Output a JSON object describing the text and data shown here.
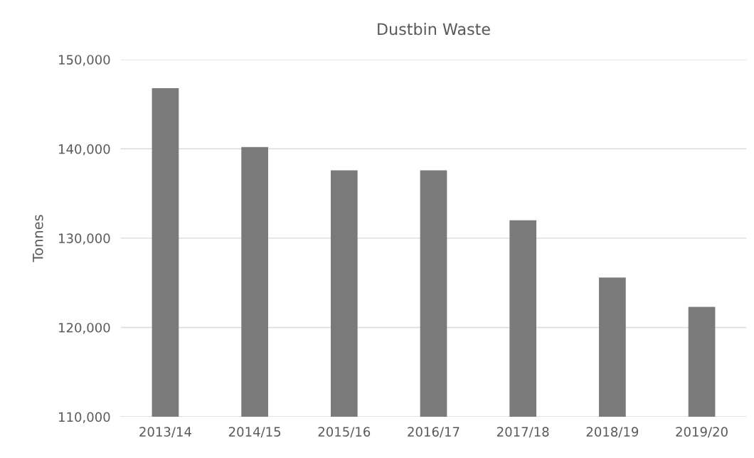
{
  "chart_data": {
    "type": "bar",
    "title": "Dustbin Waste",
    "ylabel": "Tonnes",
    "categories": [
      "2013/14",
      "2014/15",
      "2015/16",
      "2016/17",
      "2017/18",
      "2018/19",
      "2019/20"
    ],
    "values": [
      146800,
      140200,
      137600,
      137600,
      132000,
      125600,
      122300
    ],
    "color": "#7a7a7a",
    "ylim": [
      110000,
      150000
    ],
    "yticks": [
      {
        "value": 110000,
        "label": "110,000"
      },
      {
        "value": 120000,
        "label": "120,000"
      },
      {
        "value": 130000,
        "label": "130,000"
      },
      {
        "value": 140000,
        "label": "140,000"
      },
      {
        "value": 150000,
        "label": "150,000"
      }
    ],
    "grid": "y"
  }
}
